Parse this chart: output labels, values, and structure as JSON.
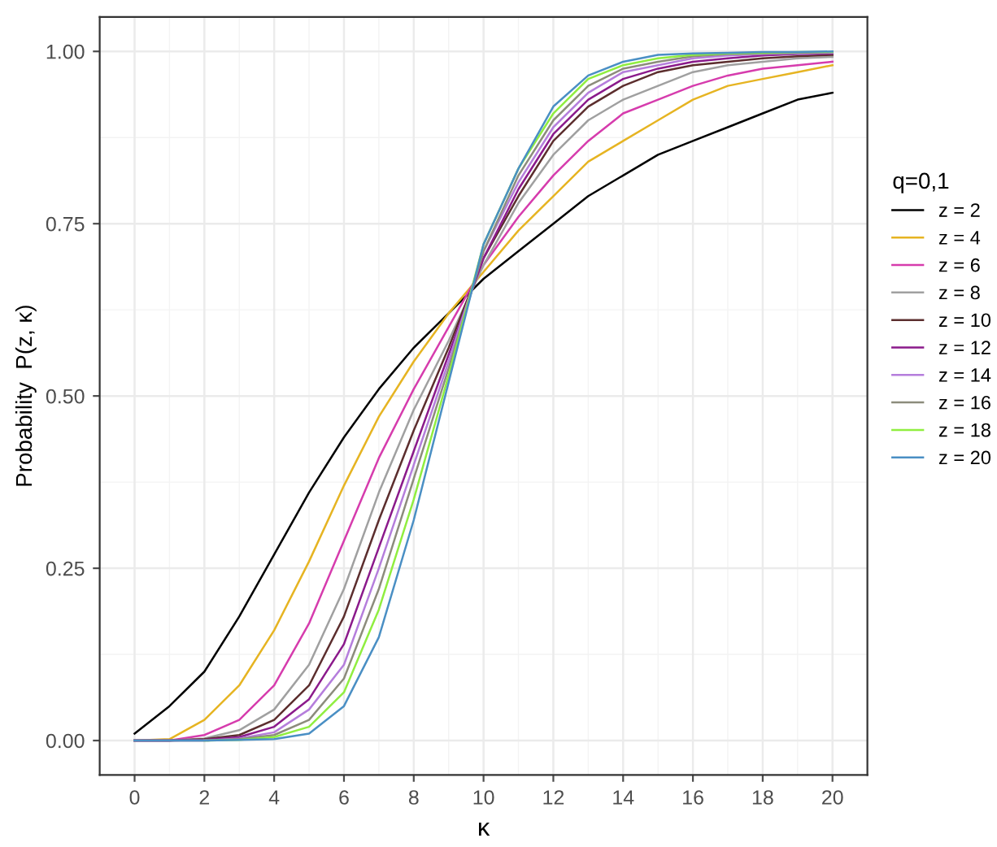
{
  "chart_data": {
    "type": "line",
    "xlabel": "κ",
    "ylabel": "Probability  P(z, κ)",
    "legend_title": "q=0,1",
    "legend": "right",
    "grid": true,
    "x": [
      0,
      1,
      2,
      3,
      4,
      5,
      6,
      7,
      8,
      9,
      10,
      11,
      12,
      13,
      14,
      15,
      16,
      17,
      18,
      19,
      20
    ],
    "xlim": [
      -1,
      21
    ],
    "xticks": [
      0,
      2,
      4,
      6,
      8,
      10,
      12,
      14,
      16,
      18,
      20
    ],
    "ylim": [
      -0.05,
      1.05
    ],
    "yticks": [
      {
        "value": 0,
        "label": "0.00"
      },
      {
        "value": 0.25,
        "label": "0.25"
      },
      {
        "value": 0.5,
        "label": "0.50"
      },
      {
        "value": 0.75,
        "label": "0.75"
      },
      {
        "value": 1,
        "label": "1.00"
      }
    ],
    "series": [
      {
        "name": "z = 2",
        "color": "#000000",
        "values": [
          0.01,
          0.05,
          0.1,
          0.18,
          0.27,
          0.36,
          0.44,
          0.51,
          0.57,
          0.62,
          0.67,
          0.71,
          0.75,
          0.79,
          0.82,
          0.85,
          0.87,
          0.89,
          0.91,
          0.93,
          0.94
        ]
      },
      {
        "name": "z = 4",
        "color": "#e6b422",
        "values": [
          0,
          0.002,
          0.03,
          0.08,
          0.16,
          0.26,
          0.37,
          0.47,
          0.55,
          0.62,
          0.68,
          0.74,
          0.79,
          0.84,
          0.87,
          0.9,
          0.93,
          0.95,
          0.96,
          0.97,
          0.98
        ]
      },
      {
        "name": "z = 6",
        "color": "#d63cad",
        "values": [
          0,
          0,
          0.008,
          0.03,
          0.08,
          0.17,
          0.29,
          0.41,
          0.51,
          0.6,
          0.69,
          0.76,
          0.82,
          0.87,
          0.91,
          0.93,
          0.95,
          0.965,
          0.975,
          0.98,
          0.985
        ]
      },
      {
        "name": "z = 8",
        "color": "#a0a0a0",
        "values": [
          0,
          0,
          0.003,
          0.015,
          0.045,
          0.11,
          0.22,
          0.36,
          0.48,
          0.58,
          0.69,
          0.78,
          0.85,
          0.9,
          0.93,
          0.95,
          0.97,
          0.98,
          0.985,
          0.99,
          0.992
        ]
      },
      {
        "name": "z = 10",
        "color": "#5c2e2e",
        "values": [
          0,
          0,
          0.002,
          0.008,
          0.03,
          0.08,
          0.18,
          0.32,
          0.45,
          0.57,
          0.7,
          0.79,
          0.87,
          0.92,
          0.95,
          0.97,
          0.98,
          0.985,
          0.99,
          0.993,
          0.995
        ]
      },
      {
        "name": "z = 12",
        "color": "#8b1a8b",
        "values": [
          0,
          0,
          0.001,
          0.005,
          0.02,
          0.06,
          0.14,
          0.28,
          0.42,
          0.56,
          0.7,
          0.8,
          0.88,
          0.93,
          0.96,
          0.975,
          0.985,
          0.99,
          0.994,
          0.996,
          0.997
        ]
      },
      {
        "name": "z = 14",
        "color": "#b57edc",
        "values": [
          0,
          0,
          0,
          0.003,
          0.012,
          0.045,
          0.11,
          0.25,
          0.4,
          0.55,
          0.71,
          0.81,
          0.89,
          0.94,
          0.97,
          0.98,
          0.99,
          0.994,
          0.996,
          0.997,
          0.998
        ]
      },
      {
        "name": "z = 16",
        "color": "#8c8c7c",
        "values": [
          0,
          0,
          0,
          0.002,
          0.008,
          0.03,
          0.09,
          0.22,
          0.38,
          0.54,
          0.71,
          0.82,
          0.9,
          0.95,
          0.975,
          0.985,
          0.993,
          0.996,
          0.997,
          0.998,
          0.999
        ]
      },
      {
        "name": "z = 18",
        "color": "#90ee40",
        "values": [
          null,
          null,
          0,
          0.001,
          0.005,
          0.02,
          0.07,
          0.19,
          0.35,
          0.53,
          0.72,
          0.83,
          0.91,
          0.96,
          0.98,
          0.99,
          0.995,
          0.997,
          0.998,
          0.999,
          0.999
        ]
      },
      {
        "name": "z = 20",
        "color": "#4a8fc4",
        "values": [
          0,
          0,
          0,
          0.001,
          0.002,
          0.01,
          0.05,
          0.15,
          0.32,
          0.52,
          0.72,
          0.83,
          0.92,
          0.965,
          0.985,
          0.995,
          0.997,
          0.998,
          0.999,
          0.999,
          1.0
        ]
      }
    ]
  }
}
